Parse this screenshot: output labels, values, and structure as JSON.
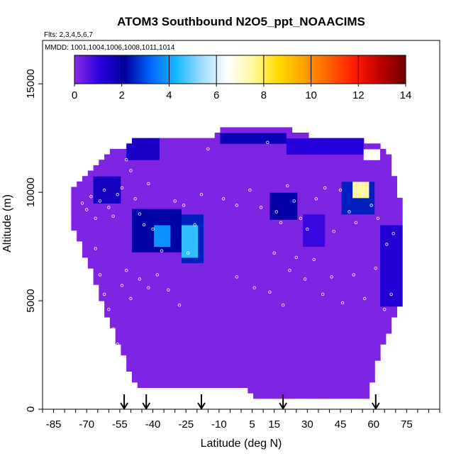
{
  "chart_data": {
    "type": "heatmap",
    "title": "ATOM3 Southbound N2O5_ppt_NOAACIMS",
    "flights_label": "Flts: 2,3,4,5,6,7",
    "mmdd_label": "MMDD: 1001,1004,1006,1008,1011,1014",
    "xlabel": "Latitude (deg N)",
    "ylabel": "Altitude (m)",
    "xlim": [
      -90,
      90
    ],
    "ylim": [
      0,
      17000
    ],
    "x_tick_labels": [
      "-85",
      "-70",
      "-55",
      "-40",
      "-25",
      "-10",
      "5",
      "15",
      "30",
      "45",
      "60",
      "75"
    ],
    "x_tick_values": [
      -85,
      -70,
      -55,
      -40,
      -25,
      -10,
      5,
      15,
      30,
      45,
      60,
      75
    ],
    "y_tick_labels": [
      "0",
      "5000",
      "10000",
      "15000"
    ],
    "y_tick_values": [
      0,
      5000,
      10000,
      15000
    ],
    "colorbar": {
      "min": 0,
      "max": 14,
      "tick_labels": [
        "0",
        "2",
        "4",
        "6",
        "8",
        "10",
        "12",
        "14"
      ],
      "tick_values": [
        0,
        2,
        4,
        6,
        8,
        10,
        12,
        14
      ],
      "colors": [
        "#8a2be2",
        "#2a00e0",
        "#0000a0",
        "#0066ff",
        "#18b8ff",
        "#9edcff",
        "#ffffff",
        "#fff8a0",
        "#ffdc00",
        "#ffa000",
        "#ff6000",
        "#ff1a00",
        "#c00000",
        "#700000"
      ]
    },
    "background_value": 0.15,
    "domain_envelope": {
      "lat": [
        -77,
        -72,
        -68,
        -63,
        -58,
        -53,
        -48,
        -43,
        -38,
        -33,
        -28,
        -23,
        -18,
        -13,
        -8,
        -3,
        2,
        7,
        12,
        17,
        22,
        27,
        32,
        37,
        42,
        47,
        52,
        57,
        62,
        67,
        72
      ],
      "alt_top": [
        10200,
        10400,
        10800,
        11300,
        11800,
        12000,
        12400,
        12400,
        12400,
        12400,
        12400,
        12400,
        12400,
        12400,
        12800,
        12800,
        12800,
        12800,
        12800,
        12800,
        12800,
        12600,
        12400,
        12400,
        12400,
        12400,
        12400,
        12200,
        12000,
        11700,
        9500
      ],
      "alt_bottom": [
        8800,
        7500,
        6500,
        5000,
        3800,
        2500,
        1200,
        1000,
        1000,
        1000,
        1000,
        1000,
        1000,
        1000,
        1000,
        1000,
        1000,
        500,
        500,
        500,
        500,
        500,
        500,
        500,
        500,
        500,
        500,
        600,
        2500,
        3800,
        4800
      ]
    },
    "features": [
      {
        "lat": [
          -53,
          -37
        ],
        "alt": [
          11400,
          12400
        ],
        "value": 1.5
      },
      {
        "lat": [
          -10,
          20
        ],
        "alt": [
          12200,
          12800
        ],
        "value": 1.8
      },
      {
        "lat": [
          20,
          55
        ],
        "alt": [
          11800,
          12400
        ],
        "value": 1.2
      },
      {
        "lat": [
          55,
          62
        ],
        "alt": [
          11400,
          12000
        ],
        "value": 6.5
      },
      {
        "lat": [
          45,
          60
        ],
        "alt": [
          9000,
          10500
        ],
        "value": 2.5
      },
      {
        "lat": [
          50,
          57
        ],
        "alt": [
          9800,
          10400
        ],
        "value": 7.5
      },
      {
        "lat": [
          -49,
          -28
        ],
        "alt": [
          7200,
          9200
        ],
        "value": 2.2
      },
      {
        "lat": [
          -40,
          -32
        ],
        "alt": [
          7600,
          8600
        ],
        "value": 3.8
      },
      {
        "lat": [
          -28,
          -17
        ],
        "alt": [
          6800,
          9000
        ],
        "value": 2.5
      },
      {
        "lat": [
          -26,
          -19
        ],
        "alt": [
          7000,
          8600
        ],
        "value": 4.5
      },
      {
        "lat": [
          12,
          26
        ],
        "alt": [
          8800,
          10000
        ],
        "value": 2.0
      },
      {
        "lat": [
          -68,
          -54
        ],
        "alt": [
          9600,
          10800
        ],
        "value": 1.6
      },
      {
        "lat": [
          62,
          72
        ],
        "alt": [
          4800,
          8500
        ],
        "value": 1.3
      },
      {
        "lat": [
          28,
          38
        ],
        "alt": [
          7500,
          9000
        ],
        "value": 0.9
      }
    ],
    "sample_points": [
      [
        -72,
        9500
      ],
      [
        -70,
        9200
      ],
      [
        -68,
        9800
      ],
      [
        -66,
        8800
      ],
      [
        -64,
        9600
      ],
      [
        -62,
        10100
      ],
      [
        -60,
        9300
      ],
      [
        -58,
        8900
      ],
      [
        -56,
        9900
      ],
      [
        -54,
        10200
      ],
      [
        -52,
        11500
      ],
      [
        -50,
        11000
      ],
      [
        -48,
        9700
      ],
      [
        -46,
        9000
      ],
      [
        -44,
        8500
      ],
      [
        -42,
        10400
      ],
      [
        -40,
        8300
      ],
      [
        -36,
        7300
      ],
      [
        -30,
        9600
      ],
      [
        -26,
        9400
      ],
      [
        -24,
        7200
      ],
      [
        -21,
        8500
      ],
      [
        -18,
        9900
      ],
      [
        -15,
        12000
      ],
      [
        -8,
        9700
      ],
      [
        -2,
        9400
      ],
      [
        4,
        10100
      ],
      [
        9,
        9300
      ],
      [
        12,
        12300
      ],
      [
        16,
        9100
      ],
      [
        18,
        8600
      ],
      [
        21,
        10300
      ],
      [
        24,
        9600
      ],
      [
        27,
        8800
      ],
      [
        30,
        8300
      ],
      [
        34,
        9700
      ],
      [
        38,
        10200
      ],
      [
        42,
        8200
      ],
      [
        45,
        10100
      ],
      [
        49,
        9100
      ],
      [
        52,
        8600
      ],
      [
        55,
        9900
      ],
      [
        59,
        9400
      ],
      [
        62,
        8800
      ],
      [
        66,
        7600
      ],
      [
        69,
        8100
      ],
      [
        -66,
        7400
      ],
      [
        -64,
        6200
      ],
      [
        -62,
        5300
      ],
      [
        -60,
        4600
      ],
      [
        -58,
        3700
      ],
      [
        -56,
        3000
      ],
      [
        -54,
        5700
      ],
      [
        -52,
        6400
      ],
      [
        -50,
        5100
      ],
      [
        -46,
        6000
      ],
      [
        -42,
        5600
      ],
      [
        -38,
        6200
      ],
      [
        -33,
        5500
      ],
      [
        -28,
        4800
      ],
      [
        -2,
        6100
      ],
      [
        6,
        5600
      ],
      [
        13,
        5400
      ],
      [
        19,
        4800
      ],
      [
        22,
        6400
      ],
      [
        25,
        7000
      ],
      [
        29,
        6000
      ],
      [
        33,
        6900
      ],
      [
        37,
        5300
      ],
      [
        41,
        6100
      ],
      [
        46,
        4900
      ],
      [
        51,
        6200
      ],
      [
        56,
        5100
      ],
      [
        61,
        6500
      ],
      [
        65,
        4600
      ],
      [
        68,
        5300
      ],
      [
        -60,
        2400
      ],
      [
        -56,
        1800
      ],
      [
        -57,
        2800
      ],
      [
        15,
        7200
      ]
    ],
    "arrows_lat": [
      -53,
      -43,
      -18,
      19,
      61
    ]
  }
}
